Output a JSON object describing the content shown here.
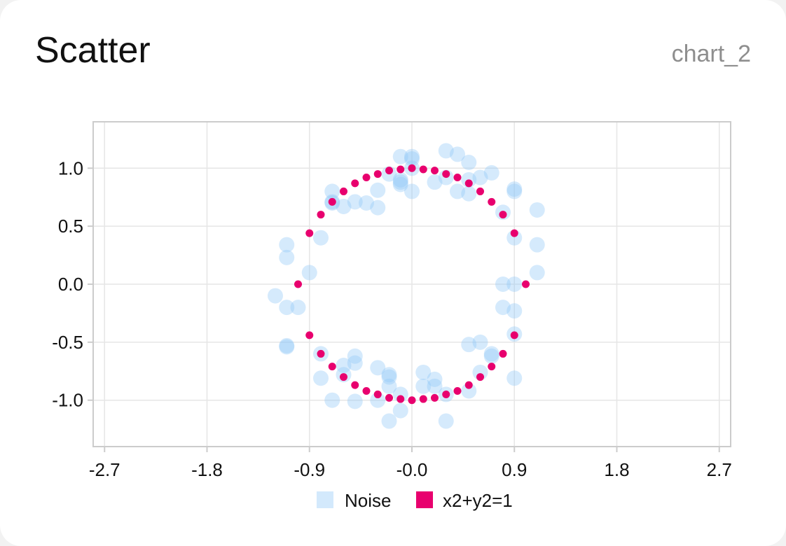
{
  "header": {
    "title": "Scatter",
    "chart_id": "chart_2"
  },
  "colors": {
    "noise": "#90c8f8",
    "circle": "#e8006e",
    "grid": "#e6e6e6",
    "frame": "#cccccc"
  },
  "chart_data": {
    "type": "scatter",
    "title": "Scatter",
    "xlabel": "",
    "ylabel": "",
    "xlim": [
      -2.8,
      2.8
    ],
    "ylim": [
      -1.4,
      1.4
    ],
    "x_ticks": [
      -2.7,
      -1.8,
      -0.9,
      0.0,
      0.9,
      1.8,
      2.7
    ],
    "x_tick_labels": [
      "-2.7",
      "-1.8",
      "-0.9",
      "-0.0",
      "0.9",
      "1.8",
      "2.7"
    ],
    "y_ticks": [
      1.0,
      0.5,
      0.0,
      -0.5,
      -1.0
    ],
    "y_tick_labels": [
      "1.0",
      "0.5",
      "0.0",
      "-0.5",
      "-1.0"
    ],
    "grid": true,
    "legend_position": "bottom",
    "series": [
      {
        "name": "Noise",
        "points": [
          [
            -0.1,
            1.1
          ],
          [
            0.0,
            1.1
          ],
          [
            0.0,
            1.08
          ],
          [
            0.0,
            1.0
          ],
          [
            -0.2,
            0.95
          ],
          [
            -0.1,
            0.9
          ],
          [
            -0.1,
            0.88
          ],
          [
            -0.1,
            0.86
          ],
          [
            0.0,
            0.8
          ],
          [
            -0.3,
            0.81
          ],
          [
            0.3,
            1.15
          ],
          [
            0.4,
            1.12
          ],
          [
            0.5,
            1.05
          ],
          [
            0.7,
            0.96
          ],
          [
            0.6,
            0.92
          ],
          [
            0.2,
            0.88
          ],
          [
            0.3,
            0.92
          ],
          [
            0.4,
            0.8
          ],
          [
            0.5,
            0.9
          ],
          [
            0.5,
            0.78
          ],
          [
            0.9,
            0.8
          ],
          [
            0.9,
            0.82
          ],
          [
            1.1,
            0.64
          ],
          [
            0.8,
            0.62
          ],
          [
            0.9,
            0.4
          ],
          [
            1.1,
            0.34
          ],
          [
            1.1,
            0.1
          ],
          [
            0.9,
            0.0
          ],
          [
            0.8,
            0.0
          ],
          [
            0.8,
            -0.2
          ],
          [
            0.9,
            -0.23
          ],
          [
            0.9,
            -0.43
          ],
          [
            0.6,
            -0.5
          ],
          [
            0.5,
            -0.52
          ],
          [
            0.7,
            -0.6
          ],
          [
            0.7,
            -0.62
          ],
          [
            0.6,
            -0.76
          ],
          [
            0.9,
            -0.81
          ],
          [
            0.5,
            -0.92
          ],
          [
            0.3,
            -0.95
          ],
          [
            0.3,
            -1.18
          ],
          [
            0.2,
            -0.82
          ],
          [
            0.2,
            -0.88
          ],
          [
            0.1,
            -0.76
          ],
          [
            0.1,
            -0.88
          ],
          [
            -0.1,
            -0.95
          ],
          [
            -0.1,
            -1.09
          ],
          [
            -0.2,
            -0.78
          ],
          [
            -0.2,
            -0.8
          ],
          [
            -0.2,
            -1.18
          ],
          [
            -0.2,
            -0.88
          ],
          [
            -0.3,
            -0.72
          ],
          [
            -0.3,
            -1.0
          ],
          [
            -0.5,
            -0.62
          ],
          [
            -0.5,
            -0.68
          ],
          [
            -0.5,
            -1.01
          ],
          [
            -0.6,
            -0.7
          ],
          [
            -0.6,
            -0.78
          ],
          [
            -0.7,
            -1.0
          ],
          [
            -0.8,
            -0.81
          ],
          [
            -0.8,
            -0.6
          ],
          [
            -1.1,
            -0.54
          ],
          [
            -1.1,
            -0.53
          ],
          [
            -1.0,
            -0.2
          ],
          [
            -1.1,
            -0.2
          ],
          [
            -1.2,
            -0.1
          ],
          [
            -0.9,
            0.1
          ],
          [
            -1.1,
            0.23
          ],
          [
            -1.1,
            0.34
          ],
          [
            -0.8,
            0.4
          ],
          [
            -0.7,
            0.8
          ],
          [
            -0.7,
            0.71
          ],
          [
            -0.6,
            0.67
          ],
          [
            -0.5,
            0.71
          ],
          [
            -0.4,
            0.7
          ],
          [
            -0.3,
            0.66
          ],
          [
            -0.7,
            0.7
          ]
        ]
      },
      {
        "name": "x2+y2=1",
        "points": [
          [
            1.0,
            0.0
          ],
          [
            0.9,
            0.44
          ],
          [
            0.8,
            0.6
          ],
          [
            0.7,
            0.71
          ],
          [
            0.6,
            0.8
          ],
          [
            0.5,
            0.87
          ],
          [
            0.4,
            0.92
          ],
          [
            0.3,
            0.95
          ],
          [
            0.2,
            0.98
          ],
          [
            0.1,
            0.99
          ],
          [
            0.0,
            1.0
          ],
          [
            -0.1,
            0.99
          ],
          [
            -0.2,
            0.98
          ],
          [
            -0.3,
            0.95
          ],
          [
            -0.4,
            0.92
          ],
          [
            -0.5,
            0.87
          ],
          [
            -0.6,
            0.8
          ],
          [
            -0.7,
            0.71
          ],
          [
            -0.8,
            0.6
          ],
          [
            -0.9,
            0.44
          ],
          [
            -1.0,
            0.0
          ],
          [
            -0.9,
            -0.44
          ],
          [
            -0.8,
            -0.6
          ],
          [
            -0.7,
            -0.71
          ],
          [
            -0.6,
            -0.8
          ],
          [
            -0.5,
            -0.87
          ],
          [
            -0.4,
            -0.92
          ],
          [
            -0.3,
            -0.95
          ],
          [
            -0.2,
            -0.98
          ],
          [
            -0.1,
            -0.99
          ],
          [
            0.0,
            -1.0
          ],
          [
            0.1,
            -0.99
          ],
          [
            0.2,
            -0.98
          ],
          [
            0.3,
            -0.95
          ],
          [
            0.4,
            -0.92
          ],
          [
            0.5,
            -0.87
          ],
          [
            0.6,
            -0.8
          ],
          [
            0.7,
            -0.71
          ],
          [
            0.8,
            -0.6
          ],
          [
            0.9,
            -0.44
          ]
        ]
      }
    ]
  }
}
